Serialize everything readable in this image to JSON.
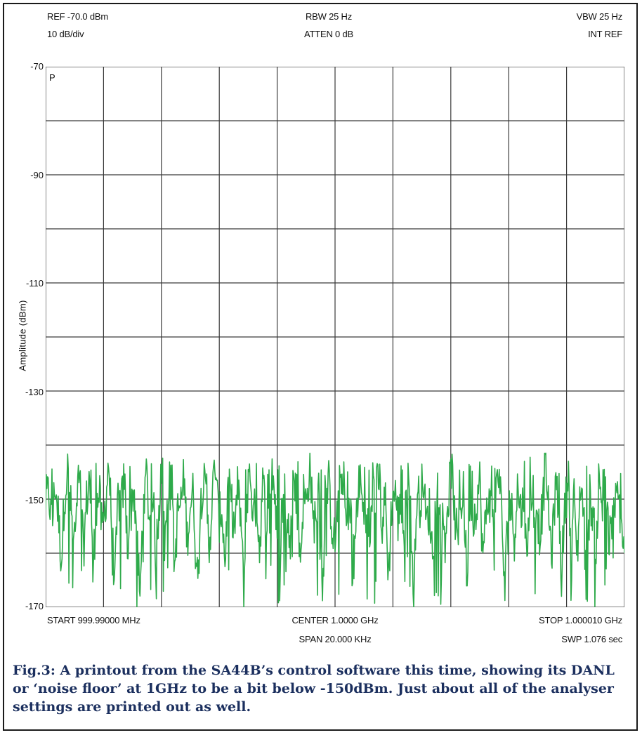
{
  "header": {
    "ref": "REF -70.0 dBm",
    "scale": "10 dB/div",
    "rbw": "RBW 25 Hz",
    "atten": "ATTEN 0 dB",
    "vbw": "VBW 25 Hz",
    "int_ref": "INT REF"
  },
  "footer": {
    "start": "START 999.99000 MHz",
    "center": "CENTER 1.0000 GHz",
    "span": "SPAN 20.000 KHz",
    "stop": "STOP 1.000010 GHz",
    "sweep": "SWP 1.076 sec"
  },
  "trace_marker": "P",
  "caption": "Fig.3: A printout from the SA44B’s control software this time, showing its DANL or ‘noise floor’ at 1GHz to be a bit below -150dBm. Just about all of the analyser settings are printed out as well.",
  "colors": {
    "trace": "#2eaa4a",
    "grid": "#3a3a3a",
    "caption": "#1b2f5e"
  },
  "chart_data": {
    "type": "line",
    "title": "",
    "xlabel": "",
    "ylabel": "Amplitude (dBm)",
    "ylim": [
      -170,
      -70
    ],
    "xlim_mhz": [
      999.99,
      1000.01
    ],
    "y_tick_labels": [
      "-70",
      "-90",
      "-110",
      "-130",
      "-150",
      "-170"
    ],
    "y_gridlines": [
      -70,
      -80,
      -90,
      -100,
      -110,
      -120,
      -130,
      -140,
      -150,
      -160,
      -170
    ],
    "x_divisions": 10,
    "grid": true,
    "series": [
      {
        "description_values_dbm": "noise floor trace, approximately -150 dBm mean with peaks near -142 and dips to -170",
        "values": [
          -150.2,
          -148.7,
          -155.4,
          -146.9,
          -152.8,
          -161.3,
          -149.1,
          -144.8,
          -151.6,
          -157.9,
          -153.0,
          -147.5,
          -159.8,
          -150.4,
          -145.6,
          -163.7,
          -152.1,
          -148.9,
          -156.4,
          -150.9,
          -142.9,
          -154.7,
          -166.2,
          -149.6,
          -151.3,
          -146.1,
          -158.5,
          -152.6,
          -147.8,
          -155.9,
          -169.5,
          -150.1,
          -145.2,
          -153.8,
          -148.3,
          -160.4,
          -151.8,
          -143.5,
          -156.8,
          -149.9,
          -147.1,
          -162.9,
          -152.3,
          -150.7,
          -145.9,
          -157.2,
          -151.0,
          -148.6,
          -165.3,
          -153.4,
          -146.4,
          -150.6,
          -158.9,
          -149.3,
          -143.1,
          -154.2,
          -151.5,
          -161.7,
          -147.9,
          -150.3,
          -156.1,
          -148.1,
          -152.9,
          -167.4,
          -149.4,
          -145.0,
          -153.3,
          -150.8,
          -159.2,
          -147.3,
          -151.9,
          -155.5,
          -144.2,
          -150.0,
          -163.1,
          -152.4,
          -148.4,
          -157.6,
          -150.5,
          -146.7,
          -153.6,
          -160.8,
          -149.0,
          -151.2,
          -142.6,
          -155.0,
          -152.0,
          -148.2,
          -166.8,
          -150.9,
          -147.0,
          -154.5,
          -158.1,
          -149.7,
          -145.4,
          -151.7,
          -156.7,
          -148.8,
          -162.4,
          -150.3,
          -146.2,
          -153.1,
          -151.4,
          -159.6,
          -147.6,
          -152.7,
          -144.5,
          -155.7,
          -149.2,
          -164.6,
          -151.1,
          -148.0,
          -153.9,
          -150.6,
          -157.4,
          -146.0,
          -152.2,
          -169.0,
          -149.5,
          -150.8,
          -145.7,
          -154.9,
          -151.8,
          -160.1,
          -148.5,
          -147.2,
          -153.5,
          -156.2,
          -150.0,
          -143.8,
          -152.5,
          -158.6,
          -149.8,
          -151.0,
          -165.9,
          -147.4,
          -154.1,
          -150.4,
          -146.6,
          -161.0,
          -152.8,
          -148.7,
          -155.3,
          -150.2,
          -144.0,
          -153.2,
          -167.9,
          -149.3,
          -151.6,
          -157.0,
          -147.7,
          -152.0,
          -150.7,
          -162.7,
          -145.3,
          -153.7,
          -149.9,
          -156.5,
          -151.3,
          -142.3,
          -154.4,
          -159.4,
          -148.3,
          -150.5,
          -163.9,
          -151.9,
          -147.1,
          -155.8,
          -150.1,
          -160.6,
          -146.8,
          -152.3,
          -168.6,
          -149.4,
          -153.0,
          -157.8,
          -148.9,
          -151.2,
          -145.1,
          -158.3,
          -155.2,
          -151.4,
          -149.6,
          -153.9,
          -160.0
        ]
      }
    ]
  }
}
